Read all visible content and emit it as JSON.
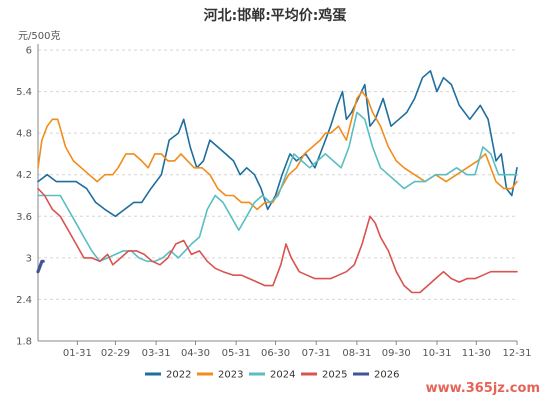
{
  "chart_data": {
    "type": "line",
    "title": "河北:邯郸:平均价:鸡蛋",
    "unit_label": "元/500克",
    "ylim": [
      1.8,
      6
    ],
    "y_ticks": [
      "1.8",
      "2.4",
      "3",
      "3.6",
      "4.2",
      "4.8",
      "5.4",
      "6"
    ],
    "x_ticks": [
      "01-31",
      "02-29",
      "03-31",
      "04-30",
      "05-31",
      "06-30",
      "07-31",
      "08-31",
      "09-30",
      "10-31",
      "11-30",
      "12-31"
    ],
    "x_domain": [
      1,
      366
    ],
    "grid": "horizontal dashed",
    "legend_position": "bottom",
    "series": [
      {
        "name": "2022",
        "color": "#1f6e9e",
        "points": [
          [
            1,
            4.1
          ],
          [
            8,
            4.2
          ],
          [
            15,
            4.1
          ],
          [
            22,
            4.1
          ],
          [
            30,
            4.1
          ],
          [
            38,
            4.0
          ],
          [
            45,
            3.8
          ],
          [
            52,
            3.7
          ],
          [
            60,
            3.6
          ],
          [
            67,
            3.7
          ],
          [
            74,
            3.8
          ],
          [
            80,
            3.8
          ],
          [
            87,
            4.0
          ],
          [
            95,
            4.2
          ],
          [
            101,
            4.7
          ],
          [
            108,
            4.8
          ],
          [
            112,
            5.0
          ],
          [
            117,
            4.6
          ],
          [
            122,
            4.3
          ],
          [
            127,
            4.4
          ],
          [
            132,
            4.7
          ],
          [
            138,
            4.6
          ],
          [
            144,
            4.5
          ],
          [
            150,
            4.4
          ],
          [
            155,
            4.2
          ],
          [
            160,
            4.3
          ],
          [
            166,
            4.2
          ],
          [
            171,
            4.0
          ],
          [
            176,
            3.7
          ],
          [
            182,
            3.9
          ],
          [
            187,
            4.2
          ],
          [
            193,
            4.5
          ],
          [
            198,
            4.4
          ],
          [
            205,
            4.5
          ],
          [
            212,
            4.3
          ],
          [
            218,
            4.6
          ],
          [
            224,
            4.9
          ],
          [
            229,
            5.2
          ],
          [
            233,
            5.4
          ],
          [
            236,
            5.0
          ],
          [
            240,
            5.1
          ],
          [
            245,
            5.3
          ],
          [
            250,
            5.5
          ],
          [
            254,
            4.9
          ],
          [
            258,
            5.0
          ],
          [
            264,
            5.3
          ],
          [
            270,
            4.9
          ],
          [
            276,
            5.0
          ],
          [
            282,
            5.1
          ],
          [
            288,
            5.3
          ],
          [
            294,
            5.6
          ],
          [
            300,
            5.7
          ],
          [
            305,
            5.4
          ],
          [
            310,
            5.6
          ],
          [
            316,
            5.5
          ],
          [
            322,
            5.2
          ],
          [
            330,
            5.0
          ],
          [
            338,
            5.2
          ],
          [
            344,
            5.0
          ],
          [
            350,
            4.4
          ],
          [
            354,
            4.5
          ],
          [
            358,
            4.0
          ],
          [
            362,
            3.9
          ],
          [
            366,
            4.3
          ]
        ]
      },
      {
        "name": "2023",
        "color": "#f28c1b",
        "points": [
          [
            1,
            4.3
          ],
          [
            4,
            4.7
          ],
          [
            8,
            4.9
          ],
          [
            12,
            5.0
          ],
          [
            16,
            5.0
          ],
          [
            22,
            4.6
          ],
          [
            28,
            4.4
          ],
          [
            34,
            4.3
          ],
          [
            40,
            4.2
          ],
          [
            46,
            4.1
          ],
          [
            52,
            4.2
          ],
          [
            58,
            4.2
          ],
          [
            62,
            4.3
          ],
          [
            68,
            4.5
          ],
          [
            74,
            4.5
          ],
          [
            80,
            4.4
          ],
          [
            85,
            4.3
          ],
          [
            90,
            4.5
          ],
          [
            95,
            4.5
          ],
          [
            100,
            4.4
          ],
          [
            105,
            4.4
          ],
          [
            110,
            4.5
          ],
          [
            115,
            4.4
          ],
          [
            120,
            4.3
          ],
          [
            126,
            4.3
          ],
          [
            132,
            4.2
          ],
          [
            138,
            4.0
          ],
          [
            144,
            3.9
          ],
          [
            150,
            3.9
          ],
          [
            156,
            3.8
          ],
          [
            162,
            3.8
          ],
          [
            168,
            3.7
          ],
          [
            174,
            3.8
          ],
          [
            180,
            3.8
          ],
          [
            186,
            4.0
          ],
          [
            192,
            4.2
          ],
          [
            198,
            4.3
          ],
          [
            204,
            4.5
          ],
          [
            210,
            4.6
          ],
          [
            216,
            4.7
          ],
          [
            220,
            4.8
          ],
          [
            224,
            4.8
          ],
          [
            230,
            4.9
          ],
          [
            236,
            4.7
          ],
          [
            240,
            5.0
          ],
          [
            244,
            5.3
          ],
          [
            248,
            5.4
          ],
          [
            252,
            5.3
          ],
          [
            256,
            5.1
          ],
          [
            262,
            4.9
          ],
          [
            268,
            4.6
          ],
          [
            274,
            4.4
          ],
          [
            280,
            4.3
          ],
          [
            288,
            4.2
          ],
          [
            296,
            4.1
          ],
          [
            304,
            4.2
          ],
          [
            312,
            4.1
          ],
          [
            320,
            4.2
          ],
          [
            328,
            4.3
          ],
          [
            336,
            4.4
          ],
          [
            342,
            4.5
          ],
          [
            350,
            4.1
          ],
          [
            356,
            4.0
          ],
          [
            362,
            4.0
          ],
          [
            366,
            4.1
          ]
        ]
      },
      {
        "name": "2024",
        "color": "#59bec2",
        "points": [
          [
            1,
            3.9
          ],
          [
            6,
            3.9
          ],
          [
            12,
            3.9
          ],
          [
            18,
            3.9
          ],
          [
            24,
            3.7
          ],
          [
            30,
            3.5
          ],
          [
            36,
            3.3
          ],
          [
            42,
            3.1
          ],
          [
            48,
            2.95
          ],
          [
            54,
            3.0
          ],
          [
            60,
            3.05
          ],
          [
            66,
            3.1
          ],
          [
            72,
            3.1
          ],
          [
            78,
            3.0
          ],
          [
            84,
            2.95
          ],
          [
            90,
            2.95
          ],
          [
            96,
            3.0
          ],
          [
            102,
            3.1
          ],
          [
            108,
            3.0
          ],
          [
            113,
            3.1
          ],
          [
            118,
            3.2
          ],
          [
            124,
            3.3
          ],
          [
            130,
            3.7
          ],
          [
            136,
            3.9
          ],
          [
            142,
            3.8
          ],
          [
            148,
            3.6
          ],
          [
            154,
            3.4
          ],
          [
            160,
            3.6
          ],
          [
            166,
            3.8
          ],
          [
            172,
            3.9
          ],
          [
            178,
            3.8
          ],
          [
            184,
            3.9
          ],
          [
            190,
            4.2
          ],
          [
            196,
            4.5
          ],
          [
            202,
            4.4
          ],
          [
            208,
            4.3
          ],
          [
            214,
            4.4
          ],
          [
            220,
            4.5
          ],
          [
            226,
            4.4
          ],
          [
            232,
            4.3
          ],
          [
            238,
            4.6
          ],
          [
            244,
            5.1
          ],
          [
            250,
            5.0
          ],
          [
            256,
            4.6
          ],
          [
            262,
            4.3
          ],
          [
            268,
            4.2
          ],
          [
            274,
            4.1
          ],
          [
            280,
            4.0
          ],
          [
            288,
            4.1
          ],
          [
            296,
            4.1
          ],
          [
            304,
            4.2
          ],
          [
            312,
            4.2
          ],
          [
            320,
            4.3
          ],
          [
            328,
            4.2
          ],
          [
            334,
            4.2
          ],
          [
            340,
            4.6
          ],
          [
            346,
            4.5
          ],
          [
            352,
            4.2
          ],
          [
            358,
            4.2
          ],
          [
            366,
            4.2
          ]
        ]
      },
      {
        "name": "2025",
        "color": "#d9534f",
        "points": [
          [
            1,
            4.0
          ],
          [
            6,
            3.9
          ],
          [
            12,
            3.7
          ],
          [
            18,
            3.6
          ],
          [
            24,
            3.4
          ],
          [
            30,
            3.2
          ],
          [
            36,
            3.0
          ],
          [
            42,
            3.0
          ],
          [
            48,
            2.95
          ],
          [
            54,
            3.05
          ],
          [
            58,
            2.9
          ],
          [
            64,
            3.0
          ],
          [
            70,
            3.1
          ],
          [
            76,
            3.1
          ],
          [
            82,
            3.05
          ],
          [
            88,
            2.95
          ],
          [
            94,
            2.9
          ],
          [
            100,
            3.0
          ],
          [
            106,
            3.2
          ],
          [
            112,
            3.25
          ],
          [
            118,
            3.05
          ],
          [
            124,
            3.1
          ],
          [
            130,
            2.95
          ],
          [
            136,
            2.85
          ],
          [
            142,
            2.8
          ],
          [
            150,
            2.75
          ],
          [
            156,
            2.75
          ],
          [
            162,
            2.7
          ],
          [
            168,
            2.65
          ],
          [
            174,
            2.6
          ],
          [
            180,
            2.6
          ],
          [
            186,
            2.9
          ],
          [
            190,
            3.2
          ],
          [
            194,
            3.0
          ],
          [
            200,
            2.8
          ],
          [
            206,
            2.75
          ],
          [
            212,
            2.7
          ],
          [
            218,
            2.7
          ],
          [
            224,
            2.7
          ],
          [
            230,
            2.75
          ],
          [
            236,
            2.8
          ],
          [
            242,
            2.9
          ],
          [
            248,
            3.2
          ],
          [
            254,
            3.6
          ],
          [
            258,
            3.5
          ],
          [
            262,
            3.3
          ],
          [
            268,
            3.1
          ],
          [
            274,
            2.8
          ],
          [
            280,
            2.6
          ],
          [
            286,
            2.5
          ],
          [
            292,
            2.5
          ],
          [
            298,
            2.6
          ],
          [
            304,
            2.7
          ],
          [
            310,
            2.8
          ],
          [
            316,
            2.7
          ],
          [
            322,
            2.65
          ],
          [
            328,
            2.7
          ],
          [
            334,
            2.7
          ],
          [
            340,
            2.75
          ],
          [
            346,
            2.8
          ],
          [
            352,
            2.8
          ],
          [
            358,
            2.8
          ],
          [
            366,
            2.8
          ]
        ]
      },
      {
        "name": "2026",
        "color": "#3f5596",
        "points": [
          [
            1,
            2.8
          ],
          [
            2,
            2.85
          ],
          [
            3,
            2.9
          ],
          [
            4,
            2.95
          ],
          [
            5,
            2.95
          ]
        ]
      }
    ]
  },
  "watermark": "www.365jz.com"
}
